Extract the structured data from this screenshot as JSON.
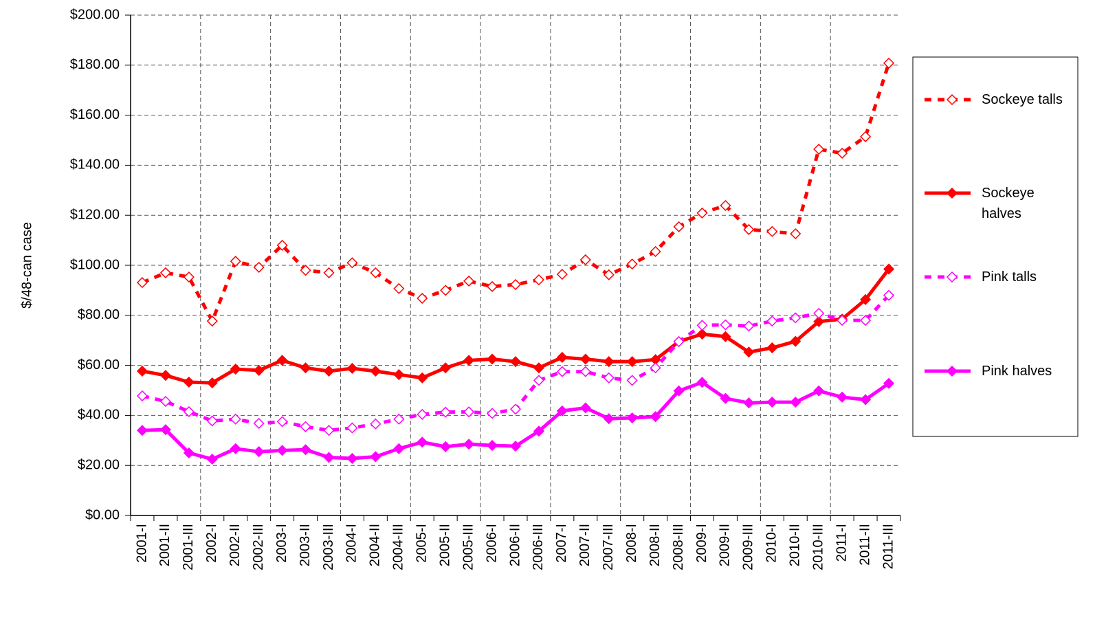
{
  "chart_data": {
    "type": "line",
    "y_label": "$/48-can case",
    "categories": [
      "2001-I",
      "2001-II",
      "2001-III",
      "2002-I",
      "2002-II",
      "2002-III",
      "2003-I",
      "2003-II",
      "2003-III",
      "2004-I",
      "2004-II",
      "2004-III",
      "2005-I",
      "2005-II",
      "2005-III",
      "2006-I",
      "2006-II",
      "2006-III",
      "2007-I",
      "2007-II",
      "2007-III",
      "2008-I",
      "2008-II",
      "2008-III",
      "2009-I",
      "2009-II",
      "2009-III",
      "2010-I",
      "2010-II",
      "2010-III",
      "2011-I",
      "2011-II",
      "2011-III"
    ],
    "series": [
      {
        "name": "Sockeye talls",
        "color": "#ff0000",
        "line_style": "dashed",
        "marker_fill": "none",
        "values": [
          93.1,
          97,
          95.3,
          77.7,
          101.6,
          99.2,
          108,
          98,
          97,
          101,
          97,
          90.7,
          86.8,
          90,
          93.7,
          91.5,
          92.3,
          94.2,
          96.4,
          102.2,
          96.2,
          100.5,
          105.5,
          115.4,
          120.9,
          123.9,
          114.3,
          113.5,
          112.6,
          146.4,
          144.8,
          151.4,
          180.8
        ]
      },
      {
        "name": "Sockeye halves",
        "color": "#ff0000",
        "line_style": "solid",
        "marker_fill": "filled",
        "values": [
          57.7,
          56,
          53.3,
          53,
          58.5,
          58,
          62,
          59,
          57.7,
          58.8,
          57.7,
          56.3,
          55,
          59,
          62,
          62.5,
          61.5,
          59,
          63.2,
          62.5,
          61.5,
          61.5,
          62.3,
          69.5,
          72.5,
          71.5,
          65.3,
          67,
          69.6,
          77.5,
          78.5,
          86.3,
          98.5
        ]
      },
      {
        "name": "Pink talls",
        "color": "#ff00ff",
        "line_style": "dashed",
        "marker_fill": "none",
        "values": [
          47.8,
          45.6,
          41.5,
          37.8,
          38.5,
          36.8,
          37.5,
          35.5,
          34,
          35,
          36.6,
          38.5,
          40.4,
          41.3,
          41.4,
          40.8,
          42.5,
          54,
          57.5,
          57.5,
          55,
          54,
          59,
          69.5,
          76,
          76.2,
          75.7,
          77.7,
          79,
          80.8,
          78,
          78,
          88
        ]
      },
      {
        "name": "Pink halves",
        "color": "#ff00ff",
        "line_style": "solid",
        "marker_fill": "filled",
        "values": [
          34,
          34.3,
          25,
          22.5,
          26.7,
          25.5,
          26,
          26.3,
          23.2,
          22.8,
          23.5,
          26.7,
          29.3,
          27.5,
          28.5,
          28,
          27.7,
          33.7,
          41.8,
          43,
          38.7,
          39,
          39.5,
          49.8,
          53.2,
          46.8,
          45,
          45.3,
          45.3,
          49.8,
          47.3,
          46.3,
          52.8
        ]
      }
    ],
    "ylim": [
      0,
      200
    ],
    "yticks": [
      {
        "value": 0,
        "label": "$0.00"
      },
      {
        "value": 20,
        "label": "$20.00"
      },
      {
        "value": 40,
        "label": "$40.00"
      },
      {
        "value": 60,
        "label": "$60.00"
      },
      {
        "value": 80,
        "label": "$80.00"
      },
      {
        "value": 100,
        "label": "$100.00"
      },
      {
        "value": 120,
        "label": "$120.00"
      },
      {
        "value": 140,
        "label": "$140.00"
      },
      {
        "value": 160,
        "label": "$160.00"
      },
      {
        "value": 180,
        "label": "$180.00"
      },
      {
        "value": 200,
        "label": "$200.00"
      }
    ],
    "grid": true,
    "legend": "right"
  }
}
